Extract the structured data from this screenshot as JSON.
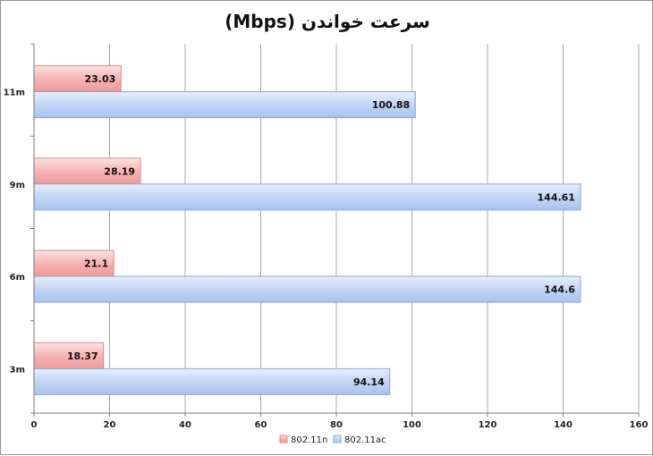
{
  "chart_data": {
    "type": "bar",
    "orientation": "horizontal",
    "title": "سرعت خواندن (Mbps)",
    "categories": [
      "3m",
      "6m",
      "9m",
      "11m"
    ],
    "series": [
      {
        "name": "802.11n",
        "values": [
          18.37,
          21.1,
          28.19,
          23.03
        ],
        "color": "#f4a5a5"
      },
      {
        "name": "802.11ac",
        "values": [
          94.14,
          144.6,
          144.61,
          100.88
        ],
        "color": "#b7cdf3"
      }
    ],
    "data_labels": {
      "802.11n": [
        "18.37",
        "21.1",
        "28.19",
        "23.03"
      ],
      "802.11ac": [
        "94.14",
        "144.6",
        "144.61",
        "100.88"
      ]
    },
    "xlim": [
      0,
      160
    ],
    "xticks": [
      "0",
      "20",
      "40",
      "60",
      "80",
      "100",
      "120",
      "140",
      "160"
    ],
    "grid": true,
    "legend": "bottom"
  }
}
